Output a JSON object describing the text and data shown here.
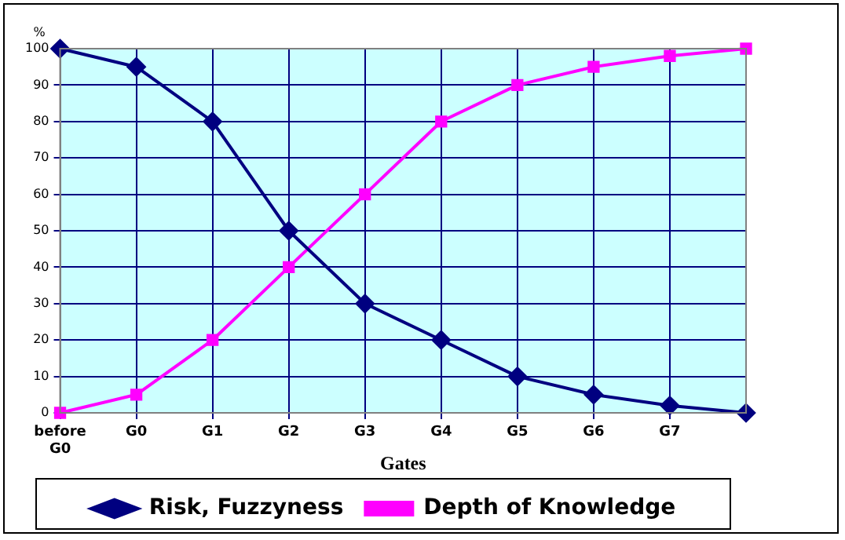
{
  "chart_data": {
    "type": "line",
    "xlabel": "Gates",
    "ylabel": "%",
    "categories": [
      "before G0",
      "G0",
      "G1",
      "G2",
      "G3",
      "G4",
      "G5",
      "G6",
      "G7",
      null
    ],
    "ylim": [
      0,
      100
    ],
    "yticks": [
      0,
      10,
      20,
      30,
      40,
      50,
      60,
      70,
      80,
      90,
      100
    ],
    "grid": true,
    "legend": "bottom",
    "series": [
      {
        "name": "Risk, Fuzzyness",
        "color": "#000080",
        "marker": "diamond",
        "values": [
          100,
          95,
          80,
          50,
          30,
          20,
          10,
          5,
          2,
          0
        ]
      },
      {
        "name": "Depth of Knowledge",
        "color": "#ff00ff",
        "marker": "square",
        "values": [
          0,
          5,
          20,
          40,
          60,
          80,
          90,
          95,
          98,
          100
        ]
      }
    ]
  }
}
